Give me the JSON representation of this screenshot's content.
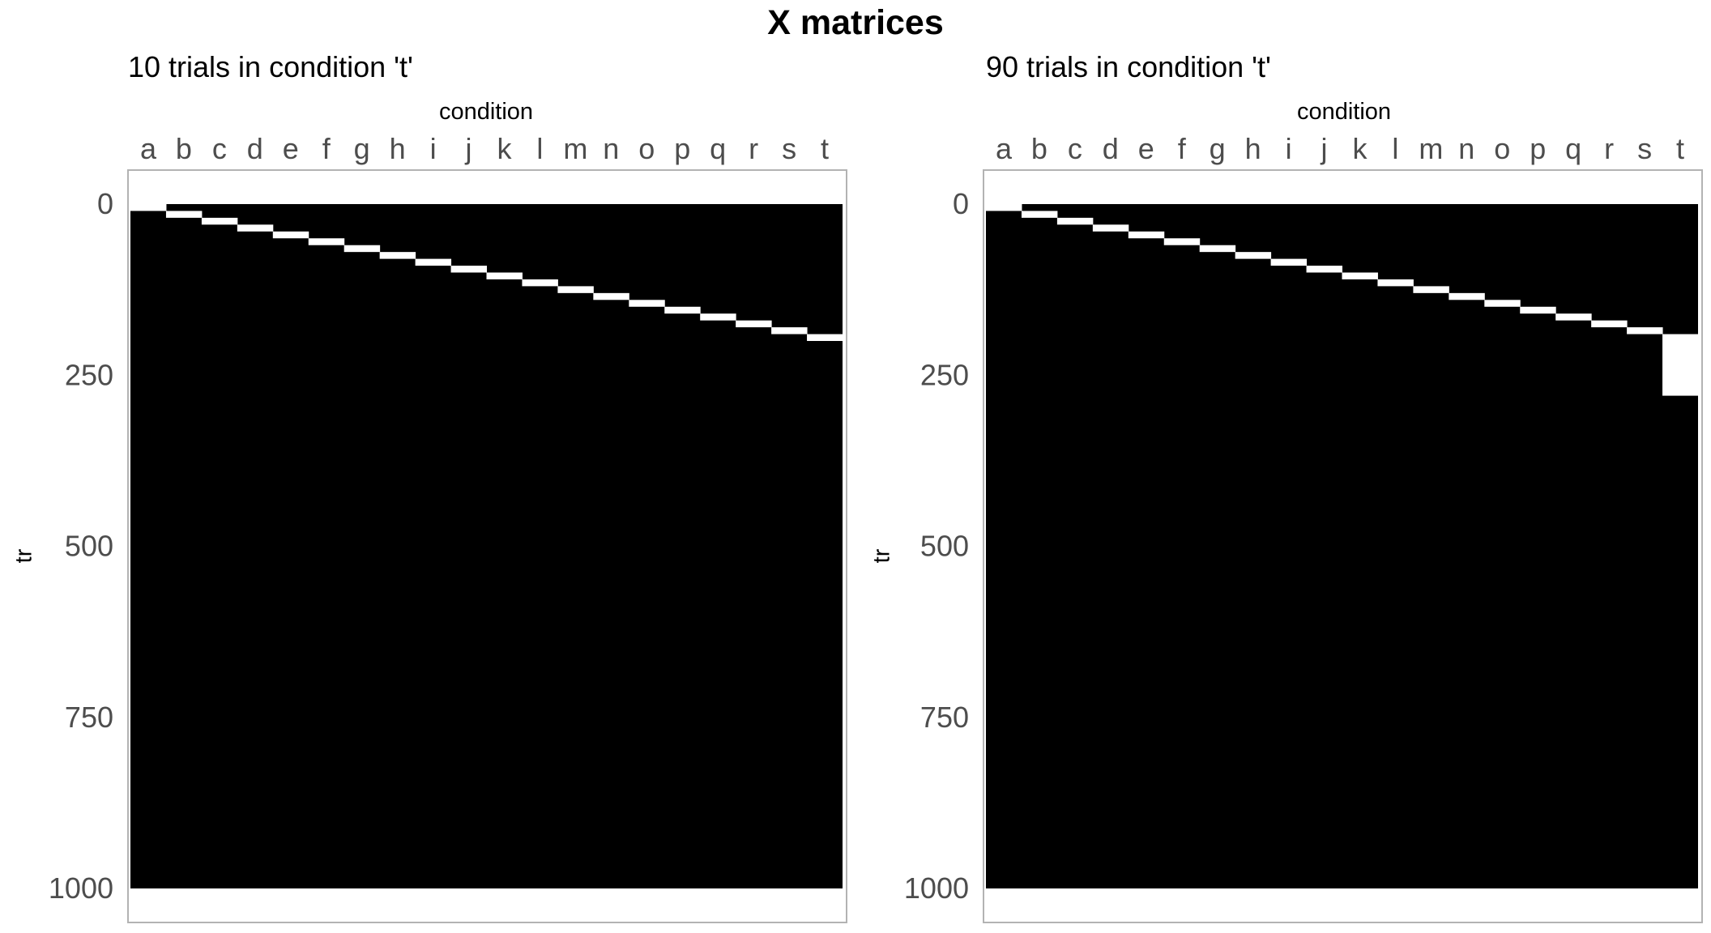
{
  "title": "X matrices",
  "chart_data": [
    {
      "type": "heatmap",
      "subtitle": "10 trials in condition 't'",
      "xlabel": "condition",
      "ylabel": "tr",
      "categories": [
        "a",
        "b",
        "c",
        "d",
        "e",
        "f",
        "g",
        "h",
        "i",
        "j",
        "k",
        "l",
        "m",
        "n",
        "o",
        "p",
        "q",
        "r",
        "s",
        "t"
      ],
      "y_ticks": [
        0,
        250,
        500,
        750,
        1000
      ],
      "ylim": [
        0,
        1000
      ],
      "y_reversed": true,
      "x_axis_position": "top",
      "n_rows": 1000,
      "background_value": 0,
      "colors": {
        "zero": "#000000",
        "one": "#ffffff",
        "panel_border": "#b3b3b3",
        "tick_text": "#4d4d4d"
      },
      "ones": [
        {
          "column": "a",
          "start": 0,
          "end": 10
        },
        {
          "column": "b",
          "start": 10,
          "end": 20
        },
        {
          "column": "c",
          "start": 20,
          "end": 30
        },
        {
          "column": "d",
          "start": 30,
          "end": 40
        },
        {
          "column": "e",
          "start": 40,
          "end": 50
        },
        {
          "column": "f",
          "start": 50,
          "end": 60
        },
        {
          "column": "g",
          "start": 60,
          "end": 70
        },
        {
          "column": "h",
          "start": 70,
          "end": 80
        },
        {
          "column": "i",
          "start": 80,
          "end": 90
        },
        {
          "column": "j",
          "start": 90,
          "end": 100
        },
        {
          "column": "k",
          "start": 100,
          "end": 110
        },
        {
          "column": "l",
          "start": 110,
          "end": 120
        },
        {
          "column": "m",
          "start": 120,
          "end": 130
        },
        {
          "column": "n",
          "start": 130,
          "end": 140
        },
        {
          "column": "o",
          "start": 140,
          "end": 150
        },
        {
          "column": "p",
          "start": 150,
          "end": 160
        },
        {
          "column": "q",
          "start": 160,
          "end": 170
        },
        {
          "column": "r",
          "start": 170,
          "end": 180
        },
        {
          "column": "s",
          "start": 180,
          "end": 190
        },
        {
          "column": "t",
          "start": 190,
          "end": 200
        }
      ]
    },
    {
      "type": "heatmap",
      "subtitle": "90 trials in condition 't'",
      "xlabel": "condition",
      "ylabel": "tr",
      "categories": [
        "a",
        "b",
        "c",
        "d",
        "e",
        "f",
        "g",
        "h",
        "i",
        "j",
        "k",
        "l",
        "m",
        "n",
        "o",
        "p",
        "q",
        "r",
        "s",
        "t"
      ],
      "y_ticks": [
        0,
        250,
        500,
        750,
        1000
      ],
      "ylim": [
        0,
        1000
      ],
      "y_reversed": true,
      "x_axis_position": "top",
      "n_rows": 1000,
      "background_value": 0,
      "colors": {
        "zero": "#000000",
        "one": "#ffffff",
        "panel_border": "#b3b3b3",
        "tick_text": "#4d4d4d"
      },
      "ones": [
        {
          "column": "a",
          "start": 0,
          "end": 10
        },
        {
          "column": "b",
          "start": 10,
          "end": 20
        },
        {
          "column": "c",
          "start": 20,
          "end": 30
        },
        {
          "column": "d",
          "start": 30,
          "end": 40
        },
        {
          "column": "e",
          "start": 40,
          "end": 50
        },
        {
          "column": "f",
          "start": 50,
          "end": 60
        },
        {
          "column": "g",
          "start": 60,
          "end": 70
        },
        {
          "column": "h",
          "start": 70,
          "end": 80
        },
        {
          "column": "i",
          "start": 80,
          "end": 90
        },
        {
          "column": "j",
          "start": 90,
          "end": 100
        },
        {
          "column": "k",
          "start": 100,
          "end": 110
        },
        {
          "column": "l",
          "start": 110,
          "end": 120
        },
        {
          "column": "m",
          "start": 120,
          "end": 130
        },
        {
          "column": "n",
          "start": 130,
          "end": 140
        },
        {
          "column": "o",
          "start": 140,
          "end": 150
        },
        {
          "column": "p",
          "start": 150,
          "end": 160
        },
        {
          "column": "q",
          "start": 160,
          "end": 170
        },
        {
          "column": "r",
          "start": 170,
          "end": 180
        },
        {
          "column": "s",
          "start": 180,
          "end": 190
        },
        {
          "column": "t",
          "start": 190,
          "end": 280
        }
      ]
    }
  ]
}
